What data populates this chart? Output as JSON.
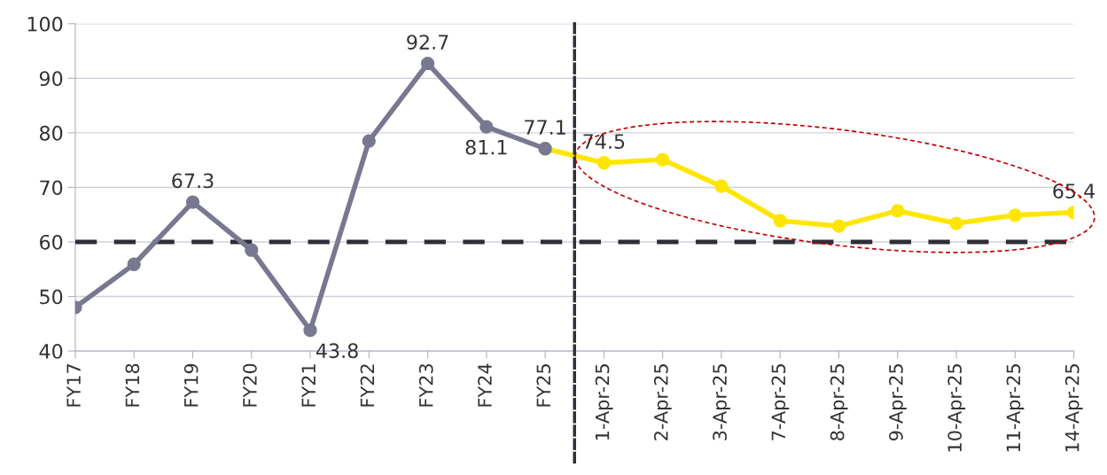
{
  "chart_data": {
    "type": "line",
    "categories": [
      "FY17",
      "FY18",
      "FY19",
      "FY20",
      "FY21",
      "FY22",
      "FY23",
      "FY24",
      "FY25",
      "1-Apr-25",
      "2-Apr-25",
      "3-Apr-25",
      "7-Apr-25",
      "8-Apr-25",
      "9-Apr-25",
      "10-Apr-25",
      "11-Apr-25",
      "14-Apr-25"
    ],
    "series": [
      {
        "color": "#787890",
        "values": [
          48.0,
          55.9,
          67.3,
          58.5,
          43.8,
          78.5,
          92.7,
          81.1,
          77.1,
          null,
          null,
          null,
          null,
          null,
          null,
          null,
          null,
          null
        ],
        "value_labels": [
          null,
          null,
          "67.3",
          null,
          "43.8",
          null,
          "92.7",
          "81.1",
          "77.1",
          null,
          null,
          null,
          null,
          null,
          null,
          null,
          null,
          null
        ]
      },
      {
        "color": "#ffe600",
        "values": [
          null,
          null,
          null,
          null,
          null,
          null,
          null,
          null,
          77.1,
          74.5,
          75.1,
          70.2,
          63.9,
          62.9,
          65.7,
          63.4,
          64.9,
          65.4
        ],
        "value_labels": [
          null,
          null,
          null,
          null,
          null,
          null,
          null,
          null,
          null,
          "74.5",
          null,
          null,
          null,
          null,
          null,
          null,
          null,
          "65.4"
        ]
      }
    ],
    "ylim": [
      40,
      100
    ],
    "yticks": [
      40,
      50,
      60,
      70,
      80,
      90,
      100
    ],
    "grid": "y",
    "marker": "circle",
    "line_style": "solid",
    "ref_lines": [
      {
        "axis": "y",
        "value": 60,
        "color": "#2e2e38",
        "line_style": "dashed"
      }
    ]
  }
}
